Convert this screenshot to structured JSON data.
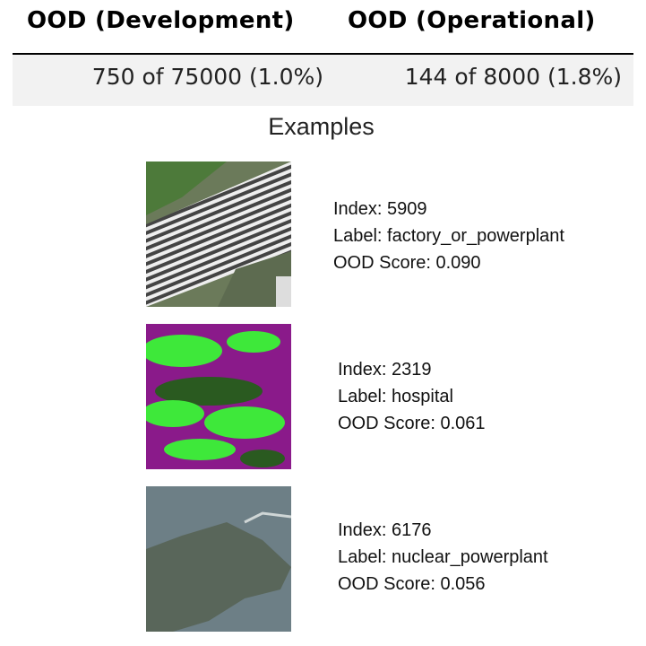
{
  "table": {
    "headers": [
      "OOD (Development)",
      "OOD (Operational)"
    ],
    "rows": [
      [
        "750 of 75000 (1.0%)",
        "144 of 8000 (1.8%)"
      ]
    ]
  },
  "examples_title": "Examples",
  "examples": [
    {
      "index": "Index: 5909",
      "label": "Label: factory_or_powerplant",
      "score": "OOD Score: 0.090"
    },
    {
      "index": "Index: 2319",
      "label": "Label: hospital",
      "score": "OOD Score: 0.061"
    },
    {
      "index": "Index: 6176",
      "label": "Label: nuclear_powerplant",
      "score": "OOD Score: 0.056"
    }
  ]
}
